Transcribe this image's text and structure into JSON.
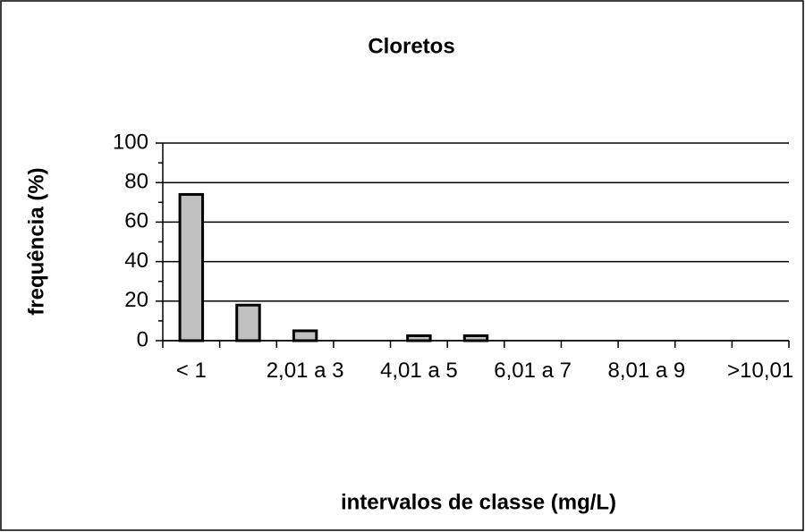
{
  "chart_data": {
    "type": "bar",
    "title": "Cloretos",
    "x_label": "intervalos de classe (mg/L)",
    "y_label": "frequência (%)",
    "categories": [
      "< 1",
      null,
      "2,01 a 3",
      null,
      "4,01 a 5",
      null,
      "6,01 a 7",
      null,
      "8,01 a 9",
      null,
      ">10,01"
    ],
    "values": [
      74,
      18,
      5,
      0,
      2.5,
      2.5,
      0,
      0,
      0,
      0,
      0
    ],
    "color": "#c0c0c0",
    "ylim": [
      0,
      100
    ],
    "yticks": [
      0,
      20,
      40,
      60,
      80,
      100
    ],
    "grid": true
  }
}
